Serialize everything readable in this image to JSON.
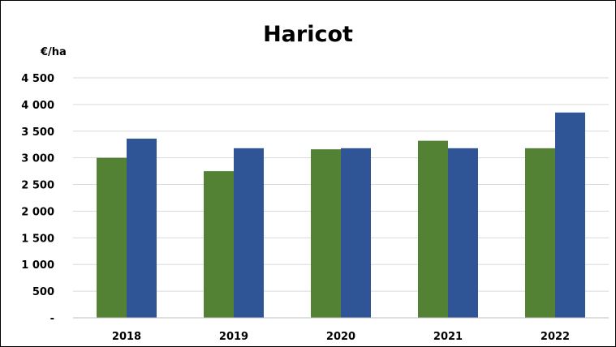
{
  "chart_data": {
    "type": "bar",
    "title": "Haricot",
    "ylabel": "€/ha",
    "categories": [
      "2018",
      "2019",
      "2020",
      "2021",
      "2022"
    ],
    "series": [
      {
        "values": [
          3000,
          2750,
          3160,
          3320,
          3180
        ],
        "color": "#548235"
      },
      {
        "values": [
          3360,
          3180,
          3180,
          3180,
          3850
        ],
        "color": "#2F5597"
      }
    ],
    "ylim": [
      0,
      4500
    ],
    "yticks": [
      0,
      500,
      1000,
      1500,
      2000,
      2500,
      3000,
      3500,
      4000,
      4500
    ],
    "ytick_labels": [
      "-",
      "500",
      "1 000",
      "1 500",
      "2 000",
      "2 500",
      "3 000",
      "3 500",
      "4 000",
      "4 500"
    ],
    "grid": true,
    "legend": "none"
  }
}
